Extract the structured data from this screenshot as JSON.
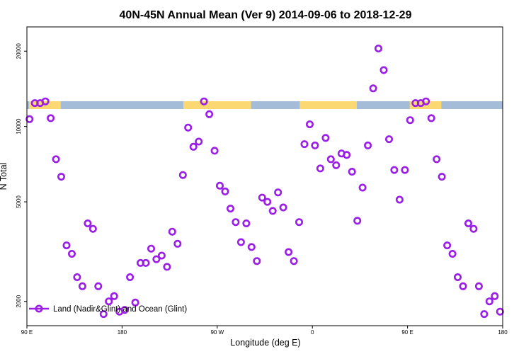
{
  "chart_data": {
    "type": "scatter",
    "title": "40N-45N Annual Mean (Ver 9)   2014-09-06 to 2018-12-29",
    "xlabel": "Longitude (deg E)",
    "ylabel": "N Total",
    "x_ticks": [
      "90 E",
      "180",
      "90 W",
      "0",
      "90 E",
      "180"
    ],
    "y_ticks": [
      "2000",
      "5000",
      "10000",
      "20000"
    ],
    "y_scale": "log",
    "ylim": [
      1600,
      25000
    ],
    "xlim": [
      90,
      540
    ],
    "legend": {
      "position": "bottom-left",
      "label": "Land (Nadir&Glint) and Ocean (Glint)"
    },
    "series": [
      {
        "name": "Land (Nadir&Glint) and Ocean (Glint)",
        "color": "#9b1ee6",
        "points": [
          [
            92.5,
            10700
          ],
          [
            97.5,
            12400
          ],
          [
            102.5,
            12400
          ],
          [
            107.5,
            12600
          ],
          [
            112.5,
            10800
          ],
          [
            117.5,
            7400
          ],
          [
            122.5,
            6300
          ],
          [
            127.5,
            3350
          ],
          [
            132.5,
            3100
          ],
          [
            137.5,
            2500
          ],
          [
            142.5,
            2300
          ],
          [
            147.5,
            4100
          ],
          [
            152.5,
            3900
          ],
          [
            157.5,
            2300
          ],
          [
            162.5,
            1780
          ],
          [
            167.5,
            2000
          ],
          [
            172.5,
            2100
          ],
          [
            177.5,
            1820
          ],
          [
            182.5,
            1850
          ],
          [
            187.5,
            2500
          ],
          [
            192.5,
            1980
          ],
          [
            197.5,
            2850
          ],
          [
            202.5,
            2850
          ],
          [
            207.5,
            3250
          ],
          [
            212.5,
            2950
          ],
          [
            217.5,
            3050
          ],
          [
            222.5,
            2750
          ],
          [
            227.5,
            3800
          ],
          [
            232.5,
            3400
          ],
          [
            237.5,
            6400
          ],
          [
            242.5,
            9900
          ],
          [
            247.5,
            8300
          ],
          [
            252.5,
            8700
          ],
          [
            257.5,
            12600
          ],
          [
            262.5,
            11200
          ],
          [
            267.5,
            8000
          ],
          [
            272.5,
            5800
          ],
          [
            277.5,
            5500
          ],
          [
            282.5,
            4700
          ],
          [
            287.5,
            4150
          ],
          [
            292.5,
            3450
          ],
          [
            297.5,
            4100
          ],
          [
            302.5,
            3300
          ],
          [
            307.5,
            2900
          ],
          [
            312.5,
            5200
          ],
          [
            317.5,
            5000
          ],
          [
            322.5,
            4600
          ],
          [
            327.5,
            5450
          ],
          [
            332.5,
            4750
          ],
          [
            337.5,
            3150
          ],
          [
            342.5,
            2900
          ],
          [
            347.5,
            4150
          ],
          [
            352.5,
            8500
          ],
          [
            357.5,
            10200
          ],
          [
            362.5,
            8400
          ],
          [
            367.5,
            6800
          ],
          [
            372.5,
            9000
          ],
          [
            377.5,
            7400
          ],
          [
            382.5,
            7000
          ],
          [
            387.5,
            7800
          ],
          [
            392.5,
            7700
          ],
          [
            397.5,
            6600
          ],
          [
            402.5,
            4200
          ],
          [
            407.5,
            5700
          ],
          [
            412.5,
            8400
          ],
          [
            417.5,
            14200
          ],
          [
            422.5,
            20500
          ],
          [
            427.5,
            16800
          ],
          [
            432.5,
            8900
          ],
          [
            437.5,
            6700
          ],
          [
            442.5,
            5100
          ],
          [
            447.5,
            6700
          ],
          [
            452.5,
            10600
          ],
          [
            457.5,
            12400
          ],
          [
            462.5,
            12400
          ],
          [
            467.5,
            12600
          ],
          [
            472.5,
            10800
          ],
          [
            477.5,
            7400
          ],
          [
            482.5,
            6300
          ],
          [
            487.5,
            3350
          ],
          [
            492.5,
            3100
          ],
          [
            497.5,
            2500
          ],
          [
            502.5,
            2300
          ],
          [
            507.5,
            4100
          ],
          [
            512.5,
            3900
          ],
          [
            517.5,
            2300
          ],
          [
            522.5,
            1780
          ],
          [
            527.5,
            2000
          ],
          [
            532.5,
            2100
          ],
          [
            537.5,
            1820
          ]
        ]
      }
    ],
    "land_ocean_band": {
      "ocean_color": "#a5bcd9",
      "land_color": "#fcd873",
      "land_ranges": [
        [
          92,
          122
        ],
        [
          238,
          302
        ],
        [
          348,
          402
        ],
        [
          452,
          482
        ]
      ]
    }
  }
}
